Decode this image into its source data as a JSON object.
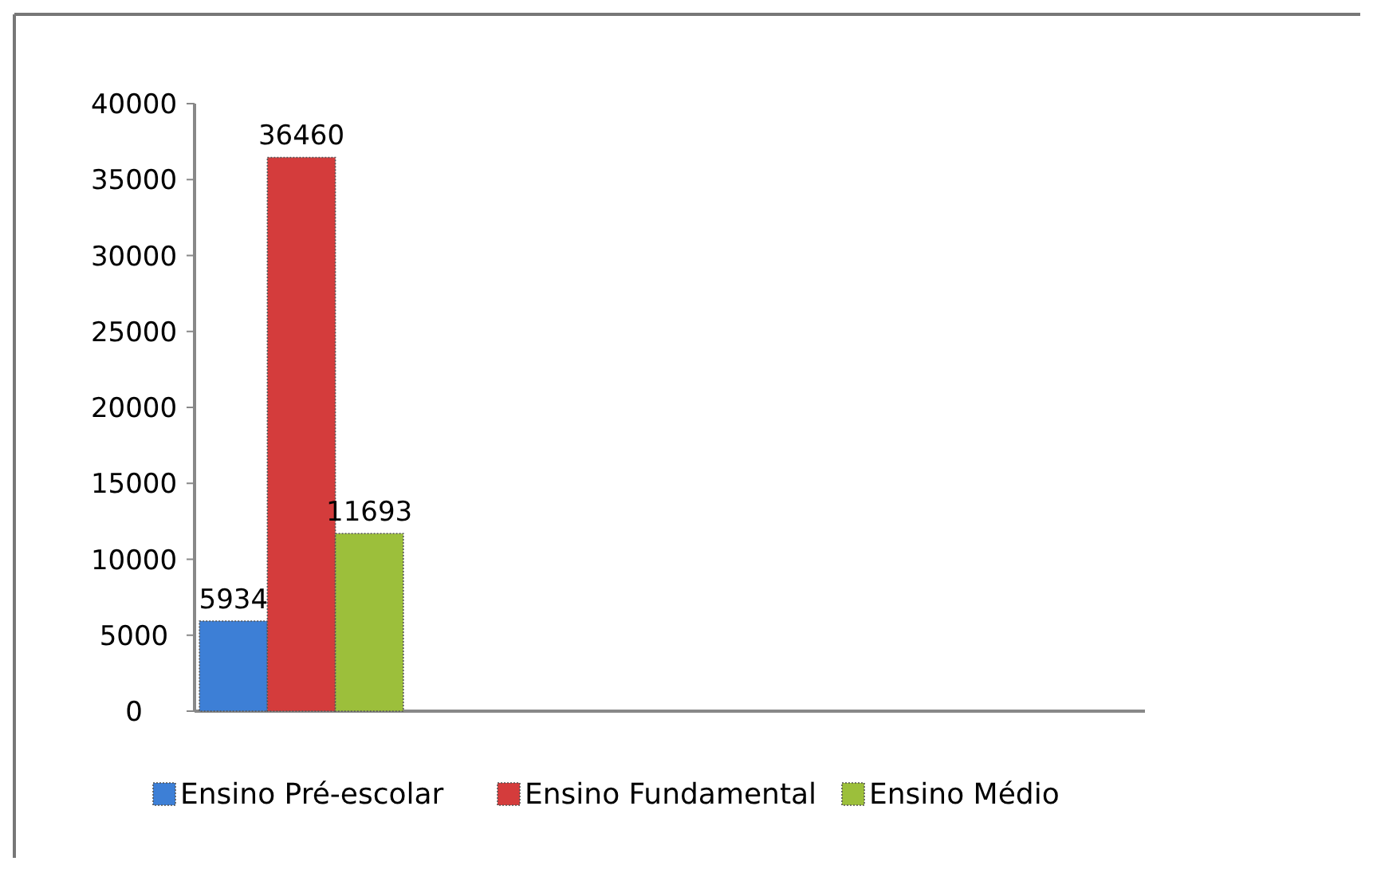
{
  "chart_data": {
    "type": "bar",
    "categories": [
      null,
      null,
      null,
      null
    ],
    "series": [
      {
        "name": "Ensino Pré-escolar",
        "color": "#3d7fd6",
        "values": [
          5934,
          null,
          null,
          null
        ]
      },
      {
        "name": "Ensino Fundamental",
        "color": "#d43c3c",
        "values": [
          36460,
          null,
          null,
          null
        ]
      },
      {
        "name": "Ensino Médio",
        "color": "#9cbf3b",
        "values": [
          11693,
          null,
          null,
          null
        ]
      }
    ],
    "ylim": [
      0,
      40000
    ],
    "yticks": [
      0,
      5000,
      10000,
      15000,
      20000,
      25000,
      30000,
      35000,
      40000
    ],
    "grid": false,
    "legend": "bottom",
    "data_labels": true
  }
}
